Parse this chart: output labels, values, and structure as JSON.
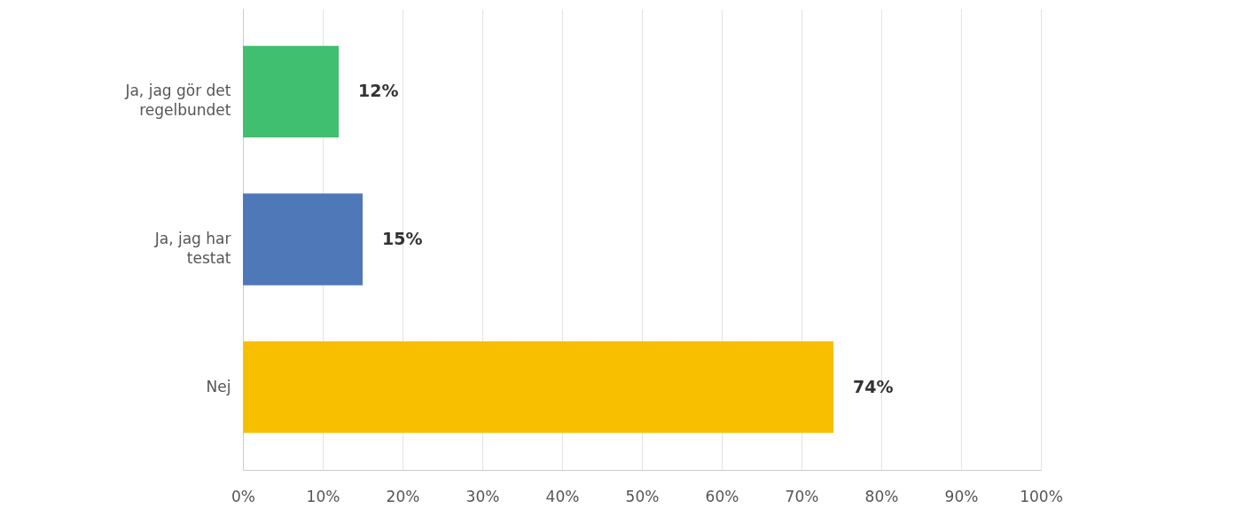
{
  "chart_data": {
    "type": "bar",
    "orientation": "horizontal",
    "categories": [
      "Ja, jag gör det regelbundet",
      "Ja, jag har testat",
      "Nej"
    ],
    "values": [
      12,
      15,
      74
    ],
    "colors": [
      "#3fbf6f",
      "#4f78b8",
      "#f8bf00"
    ],
    "value_labels": [
      "12%",
      "15%",
      "74%"
    ],
    "xlim": [
      0,
      100
    ],
    "xticks": [
      {
        "value": 0,
        "label": "0%"
      },
      {
        "value": 10,
        "label": "10%"
      },
      {
        "value": 20,
        "label": "20%"
      },
      {
        "value": 30,
        "label": "30%"
      },
      {
        "value": 40,
        "label": "40%"
      },
      {
        "value": 50,
        "label": "50%"
      },
      {
        "value": 60,
        "label": "60%"
      },
      {
        "value": 70,
        "label": "70%"
      },
      {
        "value": 80,
        "label": "80%"
      },
      {
        "value": 90,
        "label": "90%"
      },
      {
        "value": 100,
        "label": "100%"
      }
    ],
    "grid": "x"
  }
}
